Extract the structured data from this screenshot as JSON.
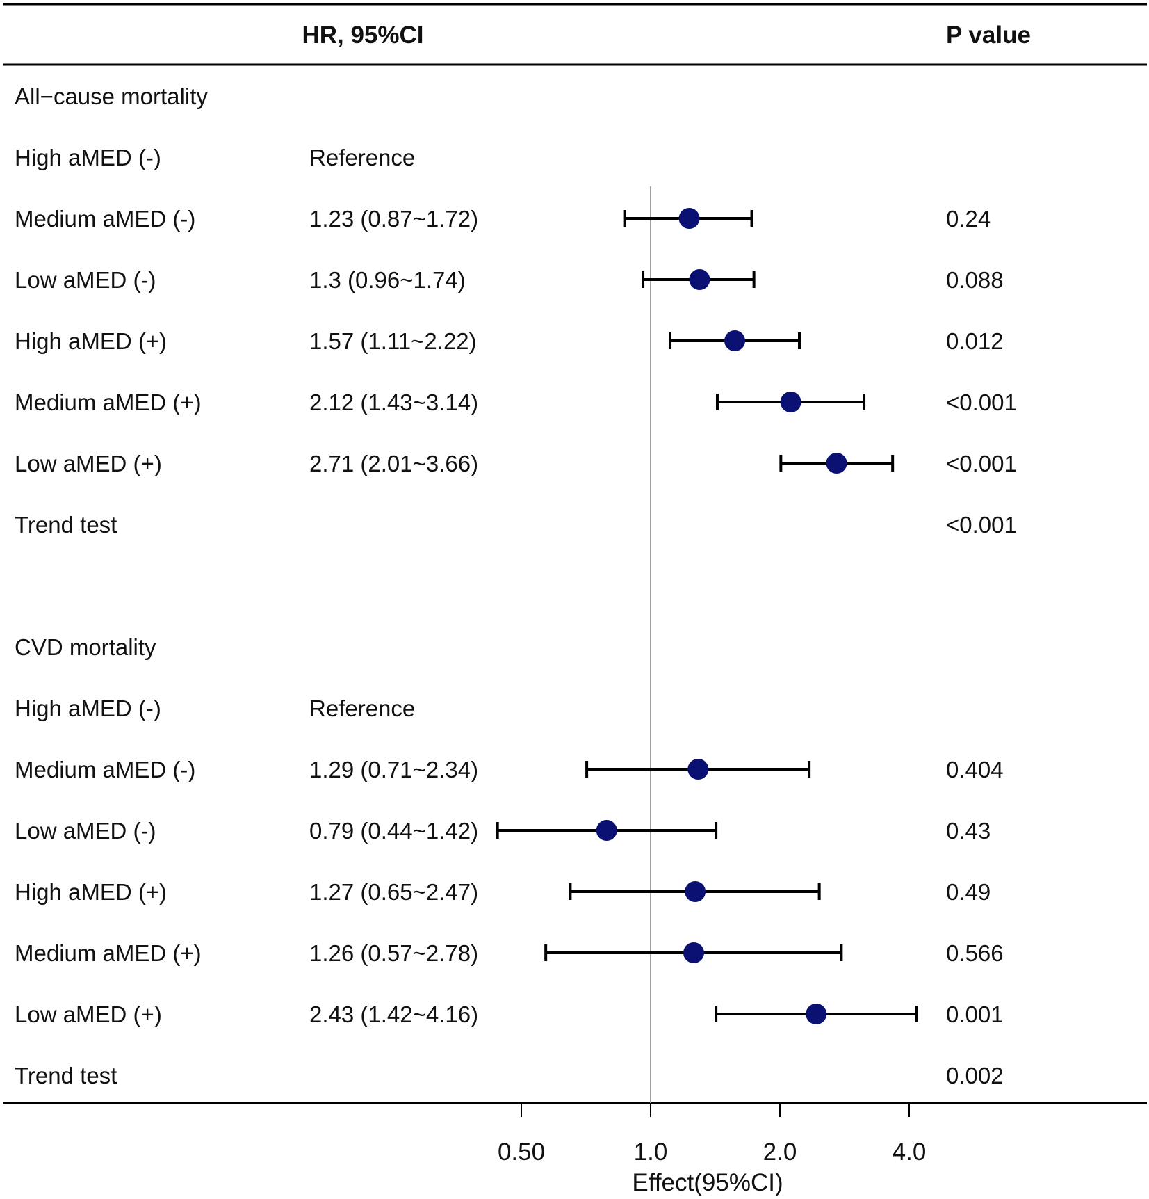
{
  "chart_data": {
    "type": "forest",
    "headers": {
      "estimate": "HR, 95%CI",
      "p": "P value"
    },
    "reference_line": 1.0,
    "x_scale": "log2",
    "x_range": [
      0.4,
      5.0
    ],
    "x_ticks": [
      "0.50",
      "1.0",
      "2.0",
      "4.0"
    ],
    "x_tick_values": [
      0.5,
      1.0,
      2.0,
      4.0
    ],
    "xlabel": "Effect(95%CI)",
    "point_color": "#0a1172",
    "rows": [
      {
        "label": "All−cause mortality",
        "kind": "section"
      },
      {
        "label": "High aMED (-)",
        "estimate_text": "Reference",
        "kind": "ref"
      },
      {
        "label": "Medium aMED (-)",
        "estimate_text": "1.23 (0.87~1.72)",
        "hr": 1.23,
        "lo": 0.87,
        "hi": 1.72,
        "p": "0.24"
      },
      {
        "label": "Low aMED (-)",
        "estimate_text": "1.3 (0.96~1.74)",
        "hr": 1.3,
        "lo": 0.96,
        "hi": 1.74,
        "p": "0.088"
      },
      {
        "label": "High aMED (+)",
        "estimate_text": "1.57 (1.11~2.22)",
        "hr": 1.57,
        "lo": 1.11,
        "hi": 2.22,
        "p": "0.012"
      },
      {
        "label": "Medium aMED (+)",
        "estimate_text": "2.12 (1.43~3.14)",
        "hr": 2.12,
        "lo": 1.43,
        "hi": 3.14,
        "p": "<0.001"
      },
      {
        "label": "Low aMED (+)",
        "estimate_text": "2.71 (2.01~3.66)",
        "hr": 2.71,
        "lo": 2.01,
        "hi": 3.66,
        "p": "<0.001"
      },
      {
        "label": "Trend test",
        "kind": "trend",
        "p": "<0.001"
      },
      {
        "kind": "blank"
      },
      {
        "label": "CVD mortality",
        "kind": "section"
      },
      {
        "label": "High aMED (-)",
        "estimate_text": "Reference",
        "kind": "ref"
      },
      {
        "label": "Medium aMED (-)",
        "estimate_text": "1.29 (0.71~2.34)",
        "hr": 1.29,
        "lo": 0.71,
        "hi": 2.34,
        "p": "0.404"
      },
      {
        "label": "Low aMED (-)",
        "estimate_text": "0.79 (0.44~1.42)",
        "hr": 0.79,
        "lo": 0.44,
        "hi": 1.42,
        "p": "0.43"
      },
      {
        "label": "High aMED (+)",
        "estimate_text": "1.27 (0.65~2.47)",
        "hr": 1.27,
        "lo": 0.65,
        "hi": 2.47,
        "p": "0.49"
      },
      {
        "label": "Medium aMED (+)",
        "estimate_text": "1.26 (0.57~2.78)",
        "hr": 1.26,
        "lo": 0.57,
        "hi": 2.78,
        "p": "0.566"
      },
      {
        "label": "Low aMED (+)",
        "estimate_text": "2.43 (1.42~4.16)",
        "hr": 2.43,
        "lo": 1.42,
        "hi": 4.16,
        "p": "0.001"
      },
      {
        "label": "Trend test",
        "kind": "trend",
        "p": "0.002"
      }
    ]
  }
}
